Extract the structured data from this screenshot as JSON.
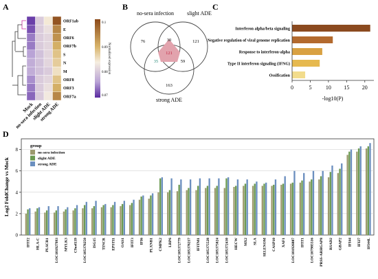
{
  "panels": {
    "a": "A",
    "b": "B",
    "c": "C",
    "d": "D"
  },
  "heatmap": {
    "rows": [
      "ORF1ab",
      "E",
      "ORF6",
      "ORF7b",
      "S",
      "N",
      "M",
      "ORF8",
      "ORF3",
      "ORF7a"
    ],
    "cols": [
      "Mock",
      "no-sera infection",
      "slight ADE",
      "strong ADE"
    ],
    "values": [
      [
        0.071,
        0.08,
        0.084,
        0.099
      ],
      [
        0.072,
        0.08,
        0.082,
        0.094
      ],
      [
        0.074,
        0.08,
        0.081,
        0.093
      ],
      [
        0.074,
        0.08,
        0.081,
        0.09
      ],
      [
        0.076,
        0.079,
        0.081,
        0.088
      ],
      [
        0.077,
        0.079,
        0.081,
        0.087
      ],
      [
        0.077,
        0.079,
        0.08,
        0.085
      ],
      [
        0.075,
        0.08,
        0.081,
        0.088
      ],
      [
        0.074,
        0.08,
        0.082,
        0.09
      ],
      [
        0.073,
        0.08,
        0.083,
        0.094
      ]
    ],
    "legend_title": "Normalized expression",
    "legend_ticks": [
      "0.1",
      "0.09",
      "0.08",
      "0.07"
    ],
    "range": [
      0.07,
      0.1
    ]
  },
  "venn": {
    "labels": {
      "a": "no-sera infection",
      "b": "slight ADE",
      "c": "strong ADE"
    },
    "counts": {
      "only_a": "76",
      "only_b": "121",
      "only_c": "163",
      "ab": "30",
      "ac": "35",
      "bc": "59",
      "abc": "121"
    }
  },
  "enrichment": {
    "terms": [
      "Interferon alpha/beta signaling",
      "Negative regulation of viral genome replication",
      "Response to interferon-alpha",
      "Type II interferon signaling (IFNG)",
      "Ossification"
    ],
    "values": [
      21.5,
      11.2,
      8.3,
      7.6,
      3.6
    ],
    "colors": [
      "#8b4a1f",
      "#b36a2e",
      "#d9a142",
      "#e6b94f",
      "#f2dc8c"
    ],
    "xticks": [
      "0",
      "5",
      "10",
      "15",
      "20"
    ],
    "xlabel": "-log10(P)",
    "xmax": 22.5
  },
  "chart_data": {
    "type": "bar",
    "ylabel": "Log2 FoldChange vs Mock",
    "ylim": [
      0,
      9
    ],
    "yticks": [
      "0",
      "2",
      "4",
      "6",
      "8"
    ],
    "legend_title": "group",
    "categories": [
      "IFIT2",
      "HLA-C",
      "PLSCR1",
      "LOC101927993",
      "MYLK3",
      "C9orf139",
      "LOC105378250",
      "ISG15",
      "TINCR",
      "EPSTI1",
      "OAS1",
      "IFIT3",
      "IFI6",
      "PLXNB1",
      "CMPK2",
      "LRP6",
      "LOC105372779",
      "LOC105378217",
      "IFITM1",
      "LOC105375528",
      "LOC105375024",
      "LOC105372430",
      "HECW",
      "MX2",
      "SLA",
      "SELENOM",
      "CASP10",
      "XAF1",
      "LOC101926887",
      "IFIT1",
      "LOC107985516",
      "PRSS-ARHGAP8",
      "RSAD2",
      "GBAP2",
      "IFI44",
      "IFI27",
      "IFI44L"
    ],
    "series": [
      {
        "name": "no-sera infection",
        "color": "#9c9a6e",
        "values": [
          2.0,
          2.2,
          2.1,
          2.1,
          2.2,
          2.3,
          2.5,
          2.5,
          2.6,
          2.6,
          2.7,
          2.8,
          3.3,
          3.4,
          4.0,
          4.0,
          4.1,
          4.2,
          4.2,
          4.4,
          4.4,
          4.4,
          4.5,
          4.6,
          4.6,
          4.6,
          4.6,
          4.7,
          4.8,
          4.9,
          5.0,
          5.2,
          5.4,
          5.8,
          7.5,
          7.8,
          8.1
        ]
      },
      {
        "name": "slight ADE",
        "color": "#6b9a52",
        "values": [
          2.4,
          2.5,
          2.3,
          2.3,
          2.4,
          2.5,
          2.8,
          2.7,
          2.8,
          2.8,
          2.9,
          3.0,
          3.6,
          3.7,
          5.3,
          4.2,
          4.7,
          4.4,
          4.6,
          4.6,
          4.6,
          5.3,
          4.6,
          4.8,
          4.8,
          4.8,
          4.7,
          4.8,
          4.9,
          5.1,
          5.2,
          5.5,
          5.9,
          6.2,
          7.8,
          8.1,
          8.3
        ]
      },
      {
        "name": "strong ADE",
        "color": "#6b8fbf",
        "values": [
          2.5,
          2.6,
          2.7,
          2.7,
          2.6,
          2.8,
          3.1,
          3.2,
          2.9,
          3.1,
          3.2,
          3.3,
          3.7,
          3.9,
          5.4,
          5.3,
          5.2,
          5.2,
          5.3,
          5.3,
          5.3,
          5.4,
          5.2,
          5.2,
          5.0,
          4.9,
          5.2,
          5.5,
          6.0,
          5.8,
          6.0,
          6.0,
          6.5,
          6.7,
          8.0,
          8.3,
          8.6
        ]
      }
    ]
  }
}
